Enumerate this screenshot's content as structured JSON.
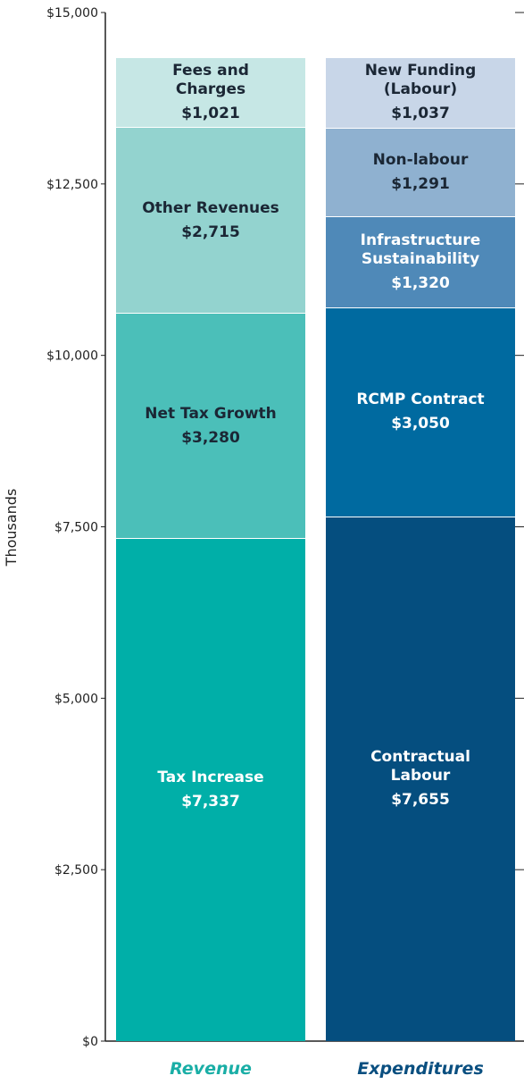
{
  "chart_data": {
    "type": "stacked_bar",
    "y_label": "Thousands",
    "categories": [
      "Revenue",
      "Expenditures"
    ],
    "category_colors": [
      "#1aaea6",
      "#0a4f80"
    ],
    "ylim": [
      0,
      15000
    ],
    "yticks": [
      {
        "value": 0,
        "label": "$0"
      },
      {
        "value": 2500,
        "label": "$2,500"
      },
      {
        "value": 5000,
        "label": "$5,000"
      },
      {
        "value": 7500,
        "label": "$7,500"
      },
      {
        "value": 10000,
        "label": "$10,000"
      },
      {
        "value": 12500,
        "label": "$12,500"
      },
      {
        "value": 15000,
        "label": "$15,000"
      }
    ],
    "series": [
      {
        "name": "Tax Increase",
        "color": "#00afa8",
        "values": [
          7337,
          null
        ],
        "value_labels": [
          "$7,337",
          null
        ]
      },
      {
        "name": "Net Tax Growth",
        "color": "#4bbfb9",
        "values": [
          3280,
          null
        ],
        "value_labels": [
          "$3,280",
          null
        ]
      },
      {
        "name": "Other Revenues",
        "color": "#93d3cf",
        "values": [
          2715,
          null
        ],
        "value_labels": [
          "$2,715",
          null
        ]
      },
      {
        "name": "Fees and Charges",
        "color": "#c6e7e5",
        "values": [
          1021,
          null
        ],
        "value_labels": [
          "$1,021",
          null
        ]
      },
      {
        "name": "Contractual Labour",
        "color": "#054e7f",
        "values": [
          null,
          7655
        ],
        "value_labels": [
          null,
          "$7,655"
        ]
      },
      {
        "name": "RCMP Contract",
        "color": "#006aa0",
        "values": [
          null,
          3050
        ],
        "value_labels": [
          null,
          "$3,050"
        ]
      },
      {
        "name": "Infrastructure Sustainability",
        "color": "#4f89b8",
        "values": [
          null,
          1320
        ],
        "value_labels": [
          null,
          "$1,320"
        ]
      },
      {
        "name": "Non-labour",
        "color": "#8fb1d0",
        "values": [
          null,
          1291
        ],
        "value_labels": [
          null,
          "$1,291"
        ]
      },
      {
        "name": "New Funding (Labour)",
        "color": "#c8d6e8",
        "values": [
          null,
          1037
        ],
        "value_labels": [
          null,
          "$1,037"
        ]
      }
    ]
  }
}
